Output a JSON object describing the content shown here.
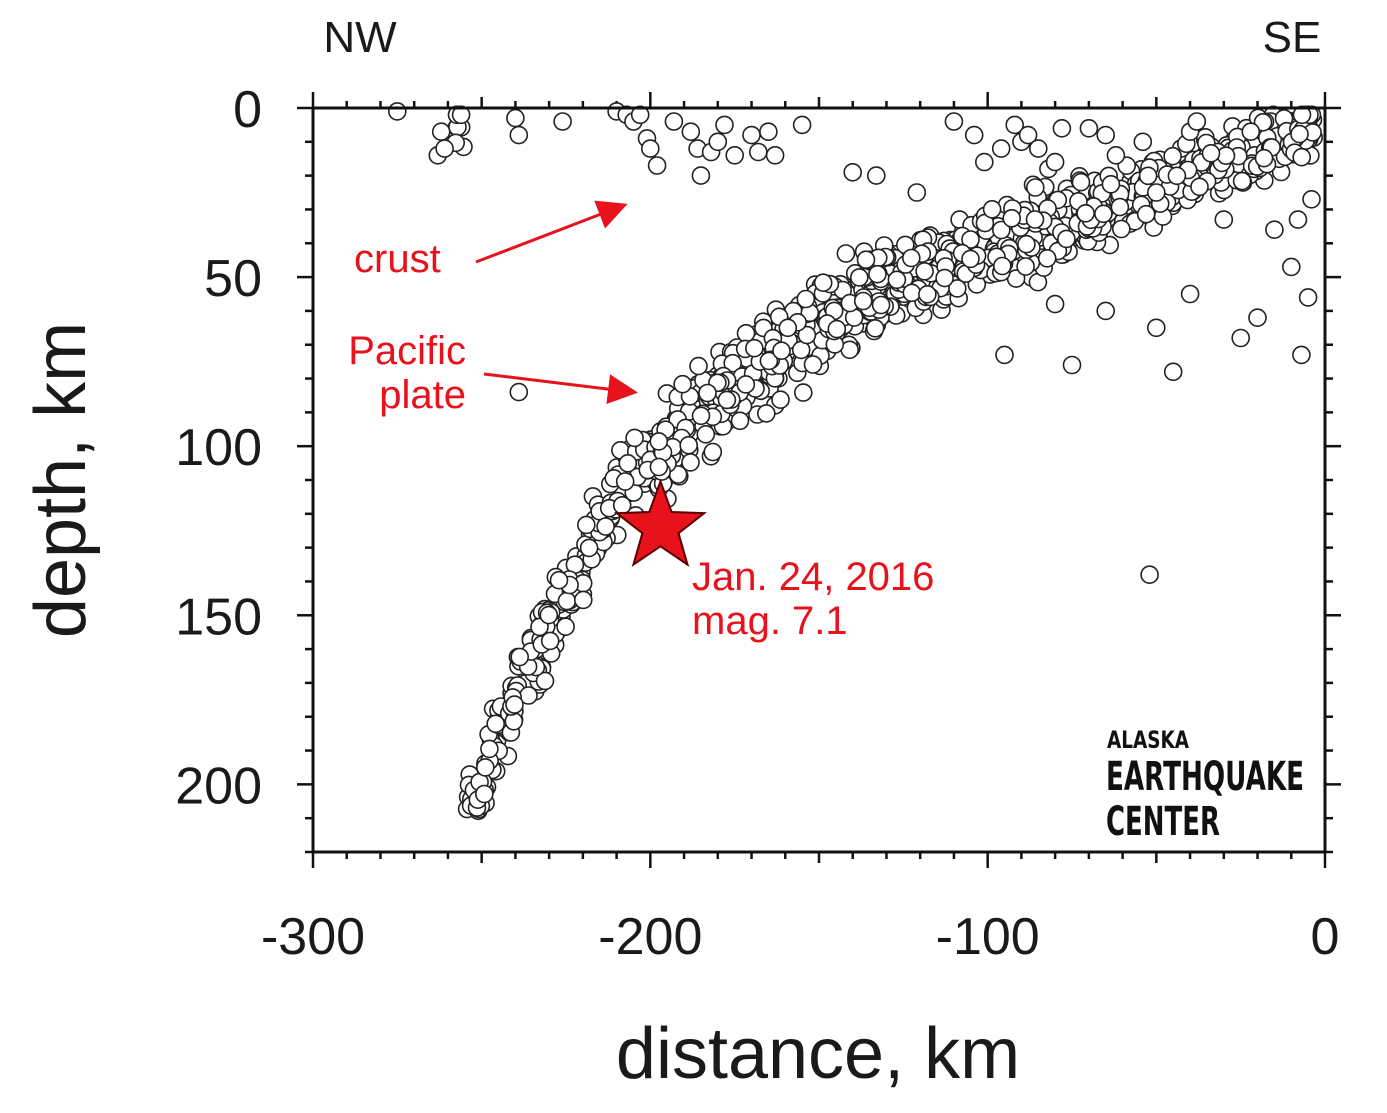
{
  "chart_data": {
    "type": "scatter",
    "title": "",
    "xlabel": "distance, km",
    "ylabel": "depth, km",
    "xlim": [
      -300,
      0
    ],
    "ylim": [
      220,
      0
    ],
    "y_inverted": true,
    "x_ticks": [
      -300,
      -200,
      -100,
      0
    ],
    "y_ticks": [
      0,
      50,
      100,
      150,
      200
    ],
    "grid": false,
    "direction_labels": {
      "left": "NW",
      "right": "SE"
    },
    "marker_color": "#ffffff",
    "marker_edge_color": "#222222",
    "highlight_color": "#e8121c",
    "slab_trend": [
      [
        -255,
        212
      ],
      [
        -245,
        185
      ],
      [
        -232,
        158
      ],
      [
        -220,
        135
      ],
      [
        -210,
        115
      ],
      [
        -198,
        102
      ],
      [
        -185,
        90
      ],
      [
        -170,
        78
      ],
      [
        -155,
        67
      ],
      [
        -140,
        58
      ],
      [
        -125,
        51
      ],
      [
        -110,
        45
      ],
      [
        -95,
        40
      ],
      [
        -80,
        35
      ],
      [
        -65,
        30
      ],
      [
        -50,
        23
      ],
      [
        -35,
        17
      ],
      [
        -20,
        12
      ],
      [
        -5,
        7
      ]
    ],
    "crust_events": [
      [
        -275,
        1
      ],
      [
        -263,
        14
      ],
      [
        -262,
        7
      ],
      [
        -261,
        12
      ],
      [
        -240,
        3
      ],
      [
        -239,
        8
      ],
      [
        -226,
        4
      ],
      [
        -210,
        1
      ],
      [
        -207,
        2
      ],
      [
        -205,
        4
      ],
      [
        -203,
        2
      ],
      [
        -201,
        9
      ],
      [
        -200,
        12
      ],
      [
        -198,
        17
      ],
      [
        -193,
        4
      ],
      [
        -188,
        7
      ],
      [
        -186,
        12
      ],
      [
        -185,
        20
      ],
      [
        -182,
        13
      ],
      [
        -180,
        10
      ],
      [
        -178,
        5
      ],
      [
        -175,
        14
      ],
      [
        -170,
        8
      ],
      [
        -168,
        13
      ],
      [
        -165,
        7
      ],
      [
        -163,
        14
      ],
      [
        -155,
        5
      ],
      [
        -140,
        19
      ],
      [
        -133,
        20
      ],
      [
        -121,
        25
      ],
      [
        -110,
        4
      ],
      [
        -104,
        8
      ],
      [
        -101,
        16
      ],
      [
        -96,
        12
      ],
      [
        -92,
        5
      ],
      [
        -90,
        10
      ],
      [
        -88,
        8
      ],
      [
        -85,
        12
      ],
      [
        -82,
        18
      ],
      [
        -80,
        16
      ],
      [
        -78,
        6
      ],
      [
        -70,
        6
      ],
      [
        -65,
        8
      ],
      [
        -62,
        14
      ],
      [
        -54,
        10
      ],
      [
        -50,
        25
      ],
      [
        -40,
        7
      ],
      [
        -38,
        4
      ],
      [
        -30,
        33
      ],
      [
        -22,
        7
      ],
      [
        -8,
        33
      ],
      [
        -7,
        73
      ],
      [
        -5,
        56
      ],
      [
        -4,
        27
      ],
      [
        -45,
        78
      ],
      [
        -50,
        65
      ],
      [
        -65,
        60
      ],
      [
        -40,
        55
      ],
      [
        -20,
        62
      ],
      [
        -15,
        36
      ],
      [
        -10,
        47
      ],
      [
        -25,
        68
      ]
    ],
    "outliers": [
      [
        -239,
        84
      ],
      [
        -52,
        138
      ],
      [
        -75,
        76
      ],
      [
        -80,
        58
      ],
      [
        -95,
        73
      ]
    ],
    "highlight": {
      "distance": -197,
      "depth": 124,
      "marker": "star",
      "label_line1": "Jan. 24, 2016",
      "label_line2": "mag. 7.1"
    }
  },
  "annotations": {
    "crust": "crust",
    "pacific_line1": "Pacific",
    "pacific_line2": "plate"
  },
  "logo": {
    "line1": "ALASKA",
    "line2": "EARTHQUAKE",
    "line3": "CENTER"
  }
}
